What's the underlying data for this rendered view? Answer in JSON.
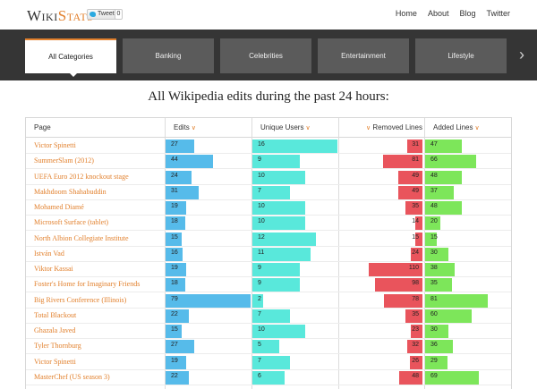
{
  "header": {
    "logo_w": "W",
    "logo_iki": "IKI",
    "logo_s": "S",
    "logo_tats": "TATS",
    "tweet_label": "Tweet",
    "tweet_count": "0",
    "nav": [
      "Home",
      "About",
      "Blog",
      "Twitter"
    ]
  },
  "tabs": [
    "All Categories",
    "Banking",
    "Celebrities",
    "Entertainment",
    "Lifestyle"
  ],
  "active_tab": 0,
  "title": "All Wikipedia edits during the past 24 hours:",
  "columns": {
    "page": "Page",
    "edits": "Edits",
    "unique_users": "Unique Users",
    "removed_lines": "Removed Lines",
    "added_lines": "Added Lines"
  },
  "colors": {
    "accent": "#e2812e",
    "edits": "#56bbea",
    "unique_users": "#59e8db",
    "removed_lines": "#e9545c",
    "added_lines": "#7de65a"
  },
  "rows": [
    {
      "page": "Victor Spinetti",
      "edits": 27,
      "users": 16,
      "removed": 31,
      "added": 47
    },
    {
      "page": "SummerSlam (2012)",
      "edits": 44,
      "users": 9,
      "removed": 81,
      "added": 66
    },
    {
      "page": "UEFA Euro 2012 knockout stage",
      "edits": 24,
      "users": 10,
      "removed": 49,
      "added": 48
    },
    {
      "page": "Makhdoom Shahabuddin",
      "edits": 31,
      "users": 7,
      "removed": 49,
      "added": 37
    },
    {
      "page": "Mohamed Diamé",
      "edits": 19,
      "users": 10,
      "removed": 35,
      "added": 48
    },
    {
      "page": "Microsoft Surface (tablet)",
      "edits": 18,
      "users": 10,
      "removed": 14,
      "added": 20
    },
    {
      "page": "North Albion Collegiate Institute",
      "edits": 15,
      "users": 12,
      "removed": 15,
      "added": 15
    },
    {
      "page": "István Vad",
      "edits": 16,
      "users": 11,
      "removed": 24,
      "added": 30
    },
    {
      "page": "Viktor Kassai",
      "edits": 19,
      "users": 9,
      "removed": 110,
      "added": 38
    },
    {
      "page": "Foster's Home for Imaginary Friends",
      "edits": 18,
      "users": 9,
      "removed": 98,
      "added": 35
    },
    {
      "page": "Big Rivers Conference (Illinois)",
      "edits": 79,
      "users": 2,
      "removed": 78,
      "added": 81
    },
    {
      "page": "Total Blackout",
      "edits": 22,
      "users": 7,
      "removed": 35,
      "added": 60
    },
    {
      "page": "Ghazala Javed",
      "edits": 15,
      "users": 10,
      "removed": 23,
      "added": 30
    },
    {
      "page": "Tyler Thornburg",
      "edits": 27,
      "users": 5,
      "removed": 32,
      "added": 36
    },
    {
      "page": "Victor Spinetti",
      "edits": 19,
      "users": 7,
      "removed": 26,
      "added": 29
    },
    {
      "page": "MasterChef (US season 3)",
      "edits": 22,
      "users": 6,
      "removed": 48,
      "added": 69
    }
  ]
}
